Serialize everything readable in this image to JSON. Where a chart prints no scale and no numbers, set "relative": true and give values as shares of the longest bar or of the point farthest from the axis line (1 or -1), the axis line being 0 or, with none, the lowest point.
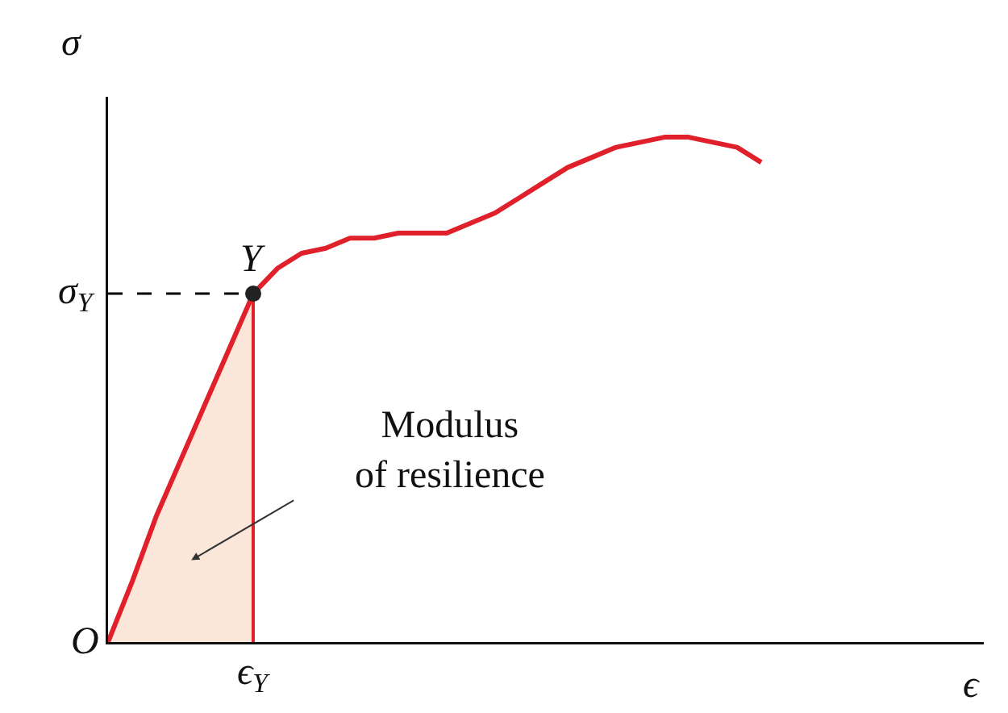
{
  "chart_data": {
    "type": "line",
    "relative": true,
    "xlabel": "ϵ",
    "ylabel": "σ",
    "categories": [
      null,
      null,
      null,
      null,
      null,
      null,
      null,
      null,
      null,
      null,
      null,
      null,
      null,
      null,
      null,
      null,
      null,
      null,
      null,
      null,
      null,
      null,
      null,
      null,
      null,
      null,
      null,
      null
    ],
    "series": [
      {
        "color": "#e0202a",
        "values": [
          0,
          0.12,
          0.25,
          0.36,
          0.47,
          0.58,
          0.69,
          0.74,
          0.77,
          0.78,
          0.8,
          0.8,
          0.81,
          0.81,
          0.81,
          0.83,
          0.85,
          0.88,
          0.91,
          0.94,
          0.96,
          0.98,
          0.99,
          1,
          1,
          0.99,
          0.98,
          0.95
        ]
      }
    ],
    "ref_lines": [
      {
        "axis": "y",
        "value": 0.69,
        "label": "σ$_{Y}$",
        "line_style": "dashed",
        "color": "#000000"
      }
    ],
    "annotations": [
      "Y",
      "ϵ$_{Y}$",
      "O",
      "Modulus\nof resilience"
    ],
    "grid": false
  }
}
